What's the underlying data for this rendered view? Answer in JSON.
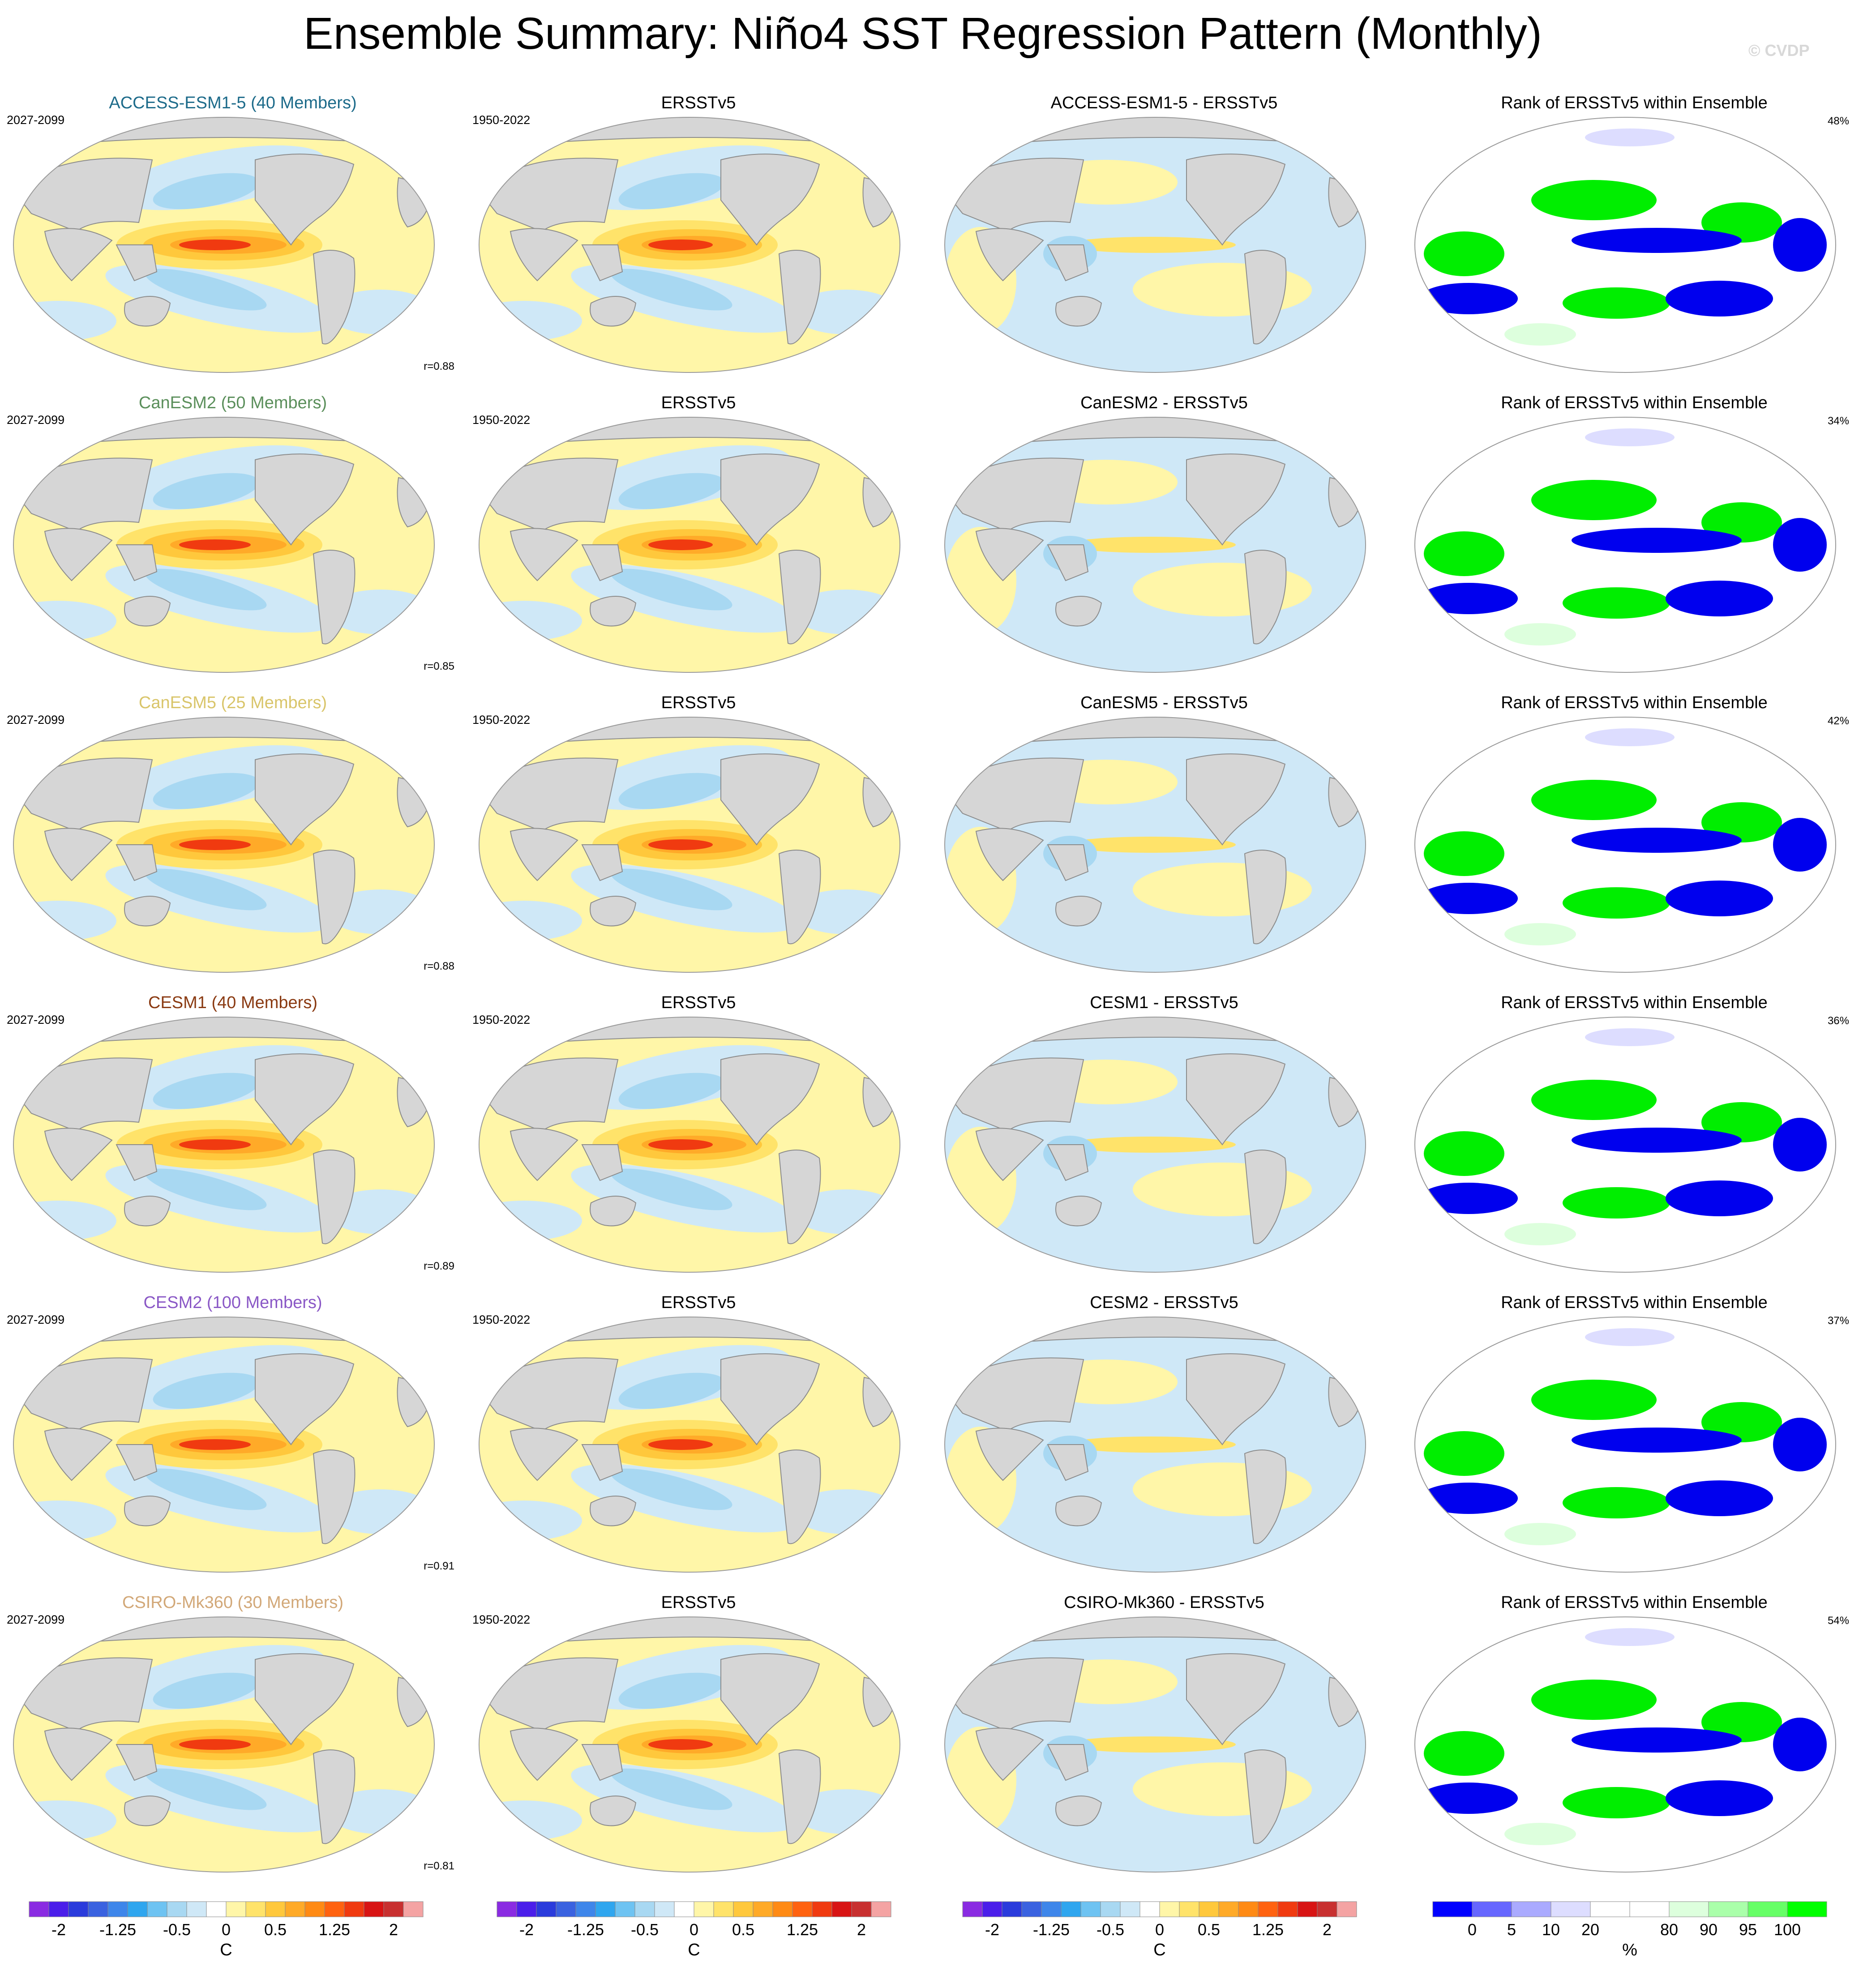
{
  "title": "Ensemble Summary: Niño4 SST Regression Pattern (Monthly)",
  "watermark": "© CVDP",
  "rows": [
    {
      "model": "ACCESS-ESM1-5 (40 Members)",
      "model_color": "#1d6b8a",
      "years": "2027-2099",
      "r": "r=0.88",
      "obs_title": "ERSSTv5",
      "obs_years": "1950-2022",
      "diff_title": "ACCESS-ESM1-5 - ERSSTv5",
      "rank_title": "Rank of ERSSTv5 within Ensemble",
      "rank_pct": "48%"
    },
    {
      "model": "CanESM2 (50 Members)",
      "model_color": "#5b8f5b",
      "years": "2027-2099",
      "r": "r=0.85",
      "obs_title": "ERSSTv5",
      "obs_years": "1950-2022",
      "diff_title": "CanESM2 - ERSSTv5",
      "rank_title": "Rank of ERSSTv5 within Ensemble",
      "rank_pct": "34%"
    },
    {
      "model": "CanESM5 (25 Members)",
      "model_color": "#d9c56a",
      "years": "2027-2099",
      "r": "r=0.88",
      "obs_title": "ERSSTv5",
      "obs_years": "1950-2022",
      "diff_title": "CanESM5 - ERSSTv5",
      "rank_title": "Rank of ERSSTv5 within Ensemble",
      "rank_pct": "42%"
    },
    {
      "model": "CESM1 (40 Members)",
      "model_color": "#8a3a12",
      "years": "2027-2099",
      "r": "r=0.89",
      "obs_title": "ERSSTv5",
      "obs_years": "1950-2022",
      "diff_title": "CESM1 - ERSSTv5",
      "rank_title": "Rank of ERSSTv5 within Ensemble",
      "rank_pct": "36%"
    },
    {
      "model": "CESM2 (100 Members)",
      "model_color": "#8a58c6",
      "years": "2027-2099",
      "r": "r=0.91",
      "obs_title": "ERSSTv5",
      "obs_years": "1950-2022",
      "diff_title": "CESM2 - ERSSTv5",
      "rank_title": "Rank of ERSSTv5 within Ensemble",
      "rank_pct": "37%"
    },
    {
      "model": "CSIRO-Mk360 (30 Members)",
      "model_color": "#d2a878",
      "years": "2027-2099",
      "r": "r=0.81",
      "obs_title": "ERSSTv5",
      "obs_years": "1950-2022",
      "diff_title": "CSIRO-Mk360 - ERSSTv5",
      "rank_title": "Rank of ERSSTv5 within Ensemble",
      "rank_pct": "54%"
    }
  ],
  "chart_data": {
    "type": "heatmap",
    "map_projection": "Robinson (Pacific-centered global map)",
    "colorbars": [
      {
        "unit": "C",
        "tick_labels": [
          "-2",
          "-1.25",
          "-0.5",
          "0",
          "0.5",
          "1.25",
          "2"
        ],
        "colors": [
          "#8a2be2",
          "#4b1eea",
          "#2a3bdc",
          "#3a62e0",
          "#3e86ea",
          "#2fa6ef",
          "#6ec3f2",
          "#a8d8f2",
          "#cfe8f7",
          "#ffffff",
          "#fff6a8",
          "#ffe36a",
          "#ffc83c",
          "#ffaa28",
          "#ff8a14",
          "#ff6210",
          "#f03a10",
          "#d81414",
          "#c83030",
          "#f4a3a3"
        ]
      },
      {
        "unit": "C",
        "tick_labels": [
          "-2",
          "-1.25",
          "-0.5",
          "0",
          "0.5",
          "1.25",
          "2"
        ],
        "colors": [
          "#8a2be2",
          "#4b1eea",
          "#2a3bdc",
          "#3a62e0",
          "#3e86ea",
          "#2fa6ef",
          "#6ec3f2",
          "#a8d8f2",
          "#cfe8f7",
          "#ffffff",
          "#fff6a8",
          "#ffe36a",
          "#ffc83c",
          "#ffaa28",
          "#ff8a14",
          "#ff6210",
          "#f03a10",
          "#d81414",
          "#c83030",
          "#f4a3a3"
        ]
      },
      {
        "unit": "C",
        "tick_labels": [
          "-2",
          "-1.25",
          "-0.5",
          "0",
          "0.5",
          "1.25",
          "2"
        ],
        "colors": [
          "#8a2be2",
          "#4b1eea",
          "#2a3bdc",
          "#3a62e0",
          "#3e86ea",
          "#2fa6ef",
          "#6ec3f2",
          "#a8d8f2",
          "#cfe8f7",
          "#ffffff",
          "#fff6a8",
          "#ffe36a",
          "#ffc83c",
          "#ffaa28",
          "#ff8a14",
          "#ff6210",
          "#f03a10",
          "#d81414",
          "#c83030",
          "#f4a3a3"
        ]
      },
      {
        "unit": "%",
        "tick_labels": [
          "0",
          "5",
          "10",
          "20",
          "80",
          "90",
          "95",
          "100"
        ],
        "colors": [
          "#0000ff",
          "#6666ff",
          "#aaaaff",
          "#ddddff",
          "#ffffff",
          "#ffffff",
          "#ddffdd",
          "#aaffaa",
          "#66ff66",
          "#00ff00"
        ]
      }
    ]
  }
}
